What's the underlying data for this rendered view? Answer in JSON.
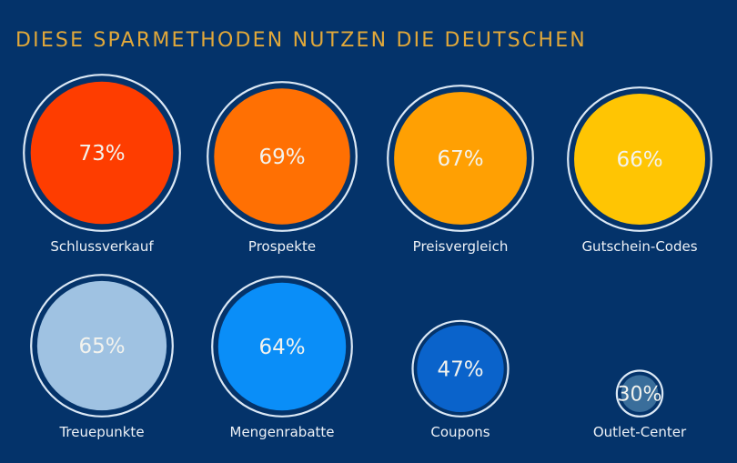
{
  "title": "DIESE SPARMETHODEN NUTZEN DIE DEUTSCHEN",
  "colors": {
    "background": "#04336a",
    "title": "#e1a83a",
    "ring": "#dbe8f5",
    "text": "#f3f3ee"
  },
  "chart_data": {
    "type": "bubble",
    "title": "DIESE SPARMETHODEN NUTZEN DIE DEUTSCHEN",
    "unit": "%",
    "categories": [
      "Schlussverkauf",
      "Prospekte",
      "Preisvergleich",
      "Gutschein-Codes",
      "Treuepunkte",
      "Mengenrabatte",
      "Coupons",
      "Outlet-Center"
    ],
    "values": [
      73,
      69,
      67,
      66,
      65,
      64,
      47,
      30
    ],
    "labels": [
      "73%",
      "69%",
      "67%",
      "66%",
      "65%",
      "64%",
      "47%",
      "30%"
    ],
    "colors": [
      "#fe3d00",
      "#ff7003",
      "#ffa003",
      "#ffc503",
      "#9fc2e2",
      "#0a8ef8",
      "#0a63cb",
      "#3a6e9b"
    ],
    "legend": "none",
    "grid": false
  }
}
